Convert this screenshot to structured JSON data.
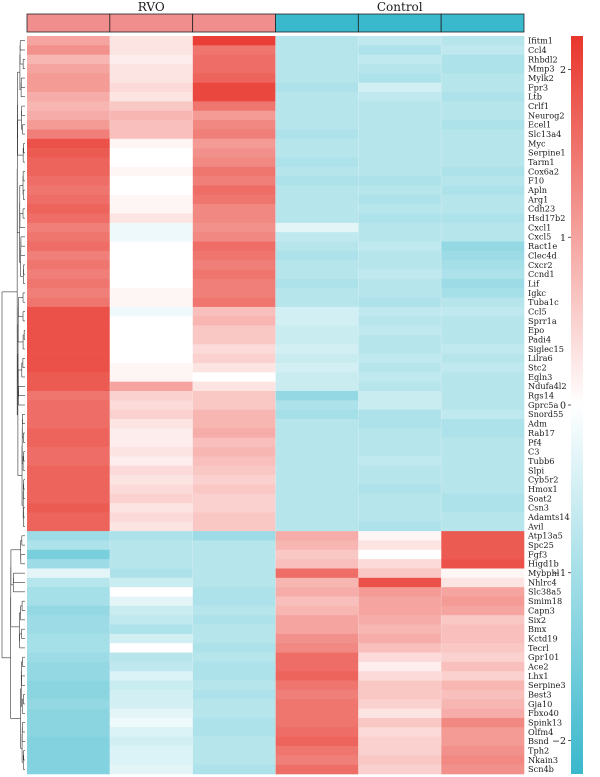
{
  "chart_data": {
    "type": "heatmap",
    "groups": [
      {
        "name": "RVO",
        "color": "#f08e8e",
        "columns": [
          0,
          1,
          2
        ]
      },
      {
        "name": "Control",
        "color": "#3ab8cc",
        "columns": [
          3,
          4,
          5
        ]
      }
    ],
    "genes": [
      "Ifitm1",
      "Ccl4",
      "Rhbdl2",
      "Mmp3",
      "Mylk2",
      "Fpr3",
      "Ltb",
      "Crlf1",
      "Neurog2",
      "Ecel1",
      "Slc13a4",
      "Myc",
      "Serpine1",
      "Tarm1",
      "Cox6a2",
      "F10",
      "Apln",
      "Arg1",
      "Cdh23",
      "Hsd17b2",
      "Cxcl1",
      "Cxcl5",
      "Ract1e",
      "Clec4d",
      "Cxcr2",
      "Ccnd1",
      "Lif",
      "Igkc",
      "Tuba1c",
      "Ccl5",
      "Sprr1a",
      "Epo",
      "Padi4",
      "Siglec15",
      "Lilra6",
      "Stc2",
      "Egln3",
      "Ndufa4l2",
      "Rgs14",
      "Gprc5a",
      "Snord55",
      "Adm",
      "Rab17",
      "Pf4",
      "C3",
      "Tubb6",
      "Slpi",
      "Cyb5r2",
      "Hmox1",
      "Soat2",
      "Csn3",
      "Adamts14",
      "Avil",
      "Atp13a5",
      "Spc25",
      "Fgf3",
      "Higd1b",
      "Mybphl",
      "Nhlrc4",
      "Slc38a5",
      "Smim18",
      "Capn3",
      "Six2",
      "Bmx",
      "Kctd19",
      "Tecrl",
      "Gpr101",
      "Ace2",
      "Lhx1",
      "Serpine3",
      "Best3",
      "Gja10",
      "Fbxo40",
      "Spink13",
      "Olfm4",
      "Bsnd",
      "Tph2",
      "Nkain3",
      "Scn4b"
    ],
    "values": [
      [
        1.0,
        0.3,
        2.1,
        -0.8,
        -0.7,
        -0.8
      ],
      [
        1.2,
        0.3,
        1.5,
        -0.8,
        -0.9,
        -0.7
      ],
      [
        0.8,
        0.2,
        1.6,
        -0.8,
        -0.7,
        -0.9
      ],
      [
        1.0,
        0.3,
        1.6,
        -0.8,
        -0.8,
        -0.9
      ],
      [
        1.1,
        0.3,
        1.7,
        -0.8,
        -0.9,
        -0.8
      ],
      [
        1.1,
        0.4,
        2.0,
        -0.9,
        -0.5,
        -0.8
      ],
      [
        0.9,
        0.3,
        2.0,
        -0.8,
        -0.7,
        -0.9
      ],
      [
        0.8,
        0.6,
        1.5,
        -0.8,
        -0.8,
        -0.8
      ],
      [
        0.9,
        0.8,
        1.1,
        -0.8,
        -0.8,
        -0.8
      ],
      [
        1.1,
        0.7,
        1.3,
        -0.8,
        -0.8,
        -0.9
      ],
      [
        1.4,
        0.7,
        1.4,
        -0.9,
        -0.8,
        -0.8
      ],
      [
        1.9,
        0.1,
        1.1,
        -0.8,
        -0.8,
        -0.8
      ],
      [
        1.8,
        0.0,
        1.2,
        -0.8,
        -0.8,
        -0.8
      ],
      [
        1.7,
        0.0,
        1.3,
        -0.9,
        -0.8,
        -0.8
      ],
      [
        1.7,
        0.1,
        1.5,
        -0.8,
        -0.8,
        -0.9
      ],
      [
        1.6,
        0.0,
        1.4,
        -0.9,
        -0.9,
        -0.8
      ],
      [
        1.5,
        0.0,
        1.6,
        -0.8,
        -0.8,
        -0.9
      ],
      [
        1.6,
        0.1,
        1.5,
        -0.8,
        -0.9,
        -0.8
      ],
      [
        1.7,
        0.1,
        1.3,
        -0.8,
        -0.8,
        -0.8
      ],
      [
        1.6,
        0.3,
        1.3,
        -0.8,
        -0.9,
        -0.9
      ],
      [
        1.4,
        -0.2,
        1.2,
        -0.3,
        -0.8,
        -0.8
      ],
      [
        1.5,
        -0.2,
        1.3,
        -0.7,
        -0.8,
        -0.8
      ],
      [
        1.6,
        0.0,
        1.6,
        -0.8,
        -0.7,
        -1.2
      ],
      [
        1.4,
        0.0,
        1.5,
        -0.9,
        -0.8,
        -1.1
      ],
      [
        1.5,
        0.0,
        1.4,
        -0.8,
        -0.8,
        -1.0
      ],
      [
        1.4,
        0.0,
        1.5,
        -0.8,
        -0.7,
        -0.9
      ],
      [
        1.5,
        0.0,
        1.4,
        -0.9,
        -0.8,
        -1.1
      ],
      [
        1.4,
        0.1,
        1.4,
        -0.8,
        -0.8,
        -1.0
      ],
      [
        1.5,
        0.1,
        1.5,
        -0.8,
        -0.9,
        -0.8
      ],
      [
        1.9,
        -0.2,
        0.7,
        -0.5,
        -0.7,
        -0.7
      ],
      [
        1.9,
        0.0,
        0.8,
        -0.5,
        -0.8,
        -0.8
      ],
      [
        1.9,
        0.0,
        0.6,
        -0.6,
        -0.7,
        -0.8
      ],
      [
        1.9,
        0.0,
        0.6,
        -0.6,
        -0.8,
        -0.8
      ],
      [
        1.9,
        0.0,
        0.4,
        -0.5,
        -0.8,
        -0.7
      ],
      [
        1.9,
        0.0,
        0.5,
        -0.6,
        -0.7,
        -0.8
      ],
      [
        1.9,
        0.1,
        0.3,
        -0.5,
        -0.8,
        -0.7
      ],
      [
        1.8,
        0.1,
        0.0,
        -0.6,
        -0.7,
        -0.8
      ],
      [
        1.8,
        1.0,
        0.3,
        -0.6,
        -0.8,
        -0.8
      ],
      [
        1.5,
        0.5,
        0.6,
        -1.2,
        -0.6,
        -0.8
      ],
      [
        1.6,
        0.4,
        0.6,
        -0.9,
        -0.6,
        -0.8
      ],
      [
        1.6,
        0.5,
        0.8,
        -1.0,
        -0.9,
        -0.7
      ],
      [
        1.6,
        0.3,
        0.8,
        -0.8,
        -0.9,
        -0.9
      ],
      [
        1.7,
        0.2,
        0.9,
        -0.8,
        -0.8,
        -0.9
      ],
      [
        1.7,
        0.2,
        0.7,
        -0.8,
        -0.8,
        -0.8
      ],
      [
        1.6,
        0.3,
        0.8,
        -0.8,
        -0.8,
        -0.8
      ],
      [
        1.6,
        0.2,
        0.7,
        -0.8,
        -0.7,
        -0.8
      ],
      [
        1.7,
        0.4,
        0.6,
        -0.8,
        -0.8,
        -0.8
      ],
      [
        1.7,
        0.3,
        0.5,
        -0.8,
        -0.8,
        -0.8
      ],
      [
        1.7,
        0.4,
        0.6,
        -0.8,
        -0.9,
        -0.8
      ],
      [
        1.7,
        0.5,
        0.5,
        -0.8,
        -0.8,
        -0.9
      ],
      [
        1.8,
        0.3,
        0.5,
        -0.8,
        -0.8,
        -0.9
      ],
      [
        1.7,
        0.4,
        0.6,
        -0.8,
        -0.8,
        -0.8
      ],
      [
        1.7,
        0.3,
        0.6,
        -0.8,
        -0.9,
        -0.8
      ],
      [
        -1.1,
        -0.9,
        -1.1,
        0.9,
        0.1,
        1.8
      ],
      [
        -0.9,
        -0.8,
        -0.8,
        0.8,
        0.3,
        1.8
      ],
      [
        -1.5,
        -0.8,
        -0.8,
        0.6,
        0.0,
        1.8
      ],
      [
        -1.1,
        -0.8,
        -0.8,
        0.7,
        0.4,
        1.9
      ],
      [
        -0.3,
        -0.9,
        -0.8,
        1.6,
        0.6,
        0.1
      ],
      [
        -0.8,
        -0.6,
        -0.8,
        0.8,
        1.9,
        0.3
      ],
      [
        -1.0,
        0.0,
        -0.9,
        0.9,
        1.1,
        1.0
      ],
      [
        -1.0,
        -0.3,
        -0.9,
        0.7,
        1.0,
        1.1
      ],
      [
        -1.2,
        -0.6,
        -0.8,
        0.8,
        1.0,
        1.0
      ],
      [
        -1.1,
        -0.7,
        -0.9,
        1.0,
        0.9,
        0.6
      ],
      [
        -1.1,
        -0.9,
        -0.8,
        1.0,
        0.8,
        0.7
      ],
      [
        -1.0,
        -0.5,
        -0.8,
        1.2,
        0.9,
        0.7
      ],
      [
        -1.0,
        0.0,
        -0.9,
        1.3,
        0.7,
        0.6
      ],
      [
        -1.1,
        -0.8,
        -0.8,
        1.6,
        0.4,
        0.5
      ],
      [
        -1.2,
        -0.7,
        -0.9,
        1.6,
        0.2,
        0.7
      ],
      [
        -1.2,
        -0.4,
        -0.9,
        1.7,
        0.4,
        0.5
      ],
      [
        -1.3,
        -0.6,
        -0.8,
        1.5,
        0.6,
        0.8
      ],
      [
        -1.3,
        -0.5,
        -0.9,
        1.4,
        0.6,
        0.7
      ],
      [
        -1.2,
        -0.5,
        -0.8,
        1.5,
        0.5,
        0.8
      ],
      [
        -1.3,
        -0.3,
        -0.8,
        1.5,
        0.3,
        0.9
      ],
      [
        -1.3,
        -0.2,
        -0.9,
        1.5,
        0.6,
        1.3
      ],
      [
        -1.3,
        -0.4,
        -0.9,
        1.6,
        0.4,
        1.1
      ],
      [
        -1.4,
        -0.5,
        -0.8,
        1.7,
        0.5,
        1.1
      ],
      [
        -1.4,
        -0.4,
        -0.8,
        1.5,
        0.5,
        1.2
      ],
      [
        -1.4,
        -0.4,
        -0.8,
        1.4,
        0.6,
        1.3
      ],
      [
        -1.4,
        -0.3,
        -0.9,
        1.6,
        0.5,
        1.2
      ]
    ],
    "colorbar": {
      "range": [
        -2.2,
        2.2
      ],
      "ticks": [
        2,
        1,
        0,
        -1,
        -2
      ],
      "tick_labels": [
        "2",
        "1",
        "0",
        "−1",
        "−2"
      ],
      "colors": {
        "high": "#e8362c",
        "mid": "#ffffff",
        "low": "#3ab8cc"
      }
    },
    "title": "",
    "xlabel": "",
    "ylabel": "",
    "row_dendrogram": true,
    "legend": "right"
  }
}
